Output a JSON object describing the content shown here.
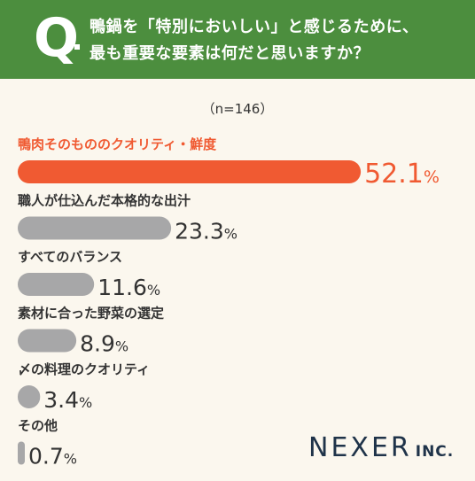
{
  "header": {
    "q_letter": "Q",
    "question_line1": "鴨鍋を「特別においしい」と感じるために、",
    "question_line2": "最も重要な要素は何だと思いますか？",
    "bg_color": "#4c8e3e"
  },
  "sample_note": "（n=146）",
  "logo": {
    "main": "NEXER",
    "sub": "INC."
  },
  "chart_data": {
    "type": "bar",
    "orientation": "horizontal",
    "value_suffix": "%",
    "categories": [
      "鴨肉そのもののクオリティ・鮮度",
      "職人が仕込んだ本格的な出汁",
      "すべてのバランス",
      "素材に合った野菜の選定",
      "〆の料理のクオリティ",
      "その他"
    ],
    "values": [
      52.1,
      23.3,
      11.6,
      8.9,
      3.4,
      0.7
    ],
    "highlight_index": 0,
    "colors": {
      "highlight": "#f05a32",
      "default": "#a7a7a8",
      "label": "#333333"
    }
  }
}
